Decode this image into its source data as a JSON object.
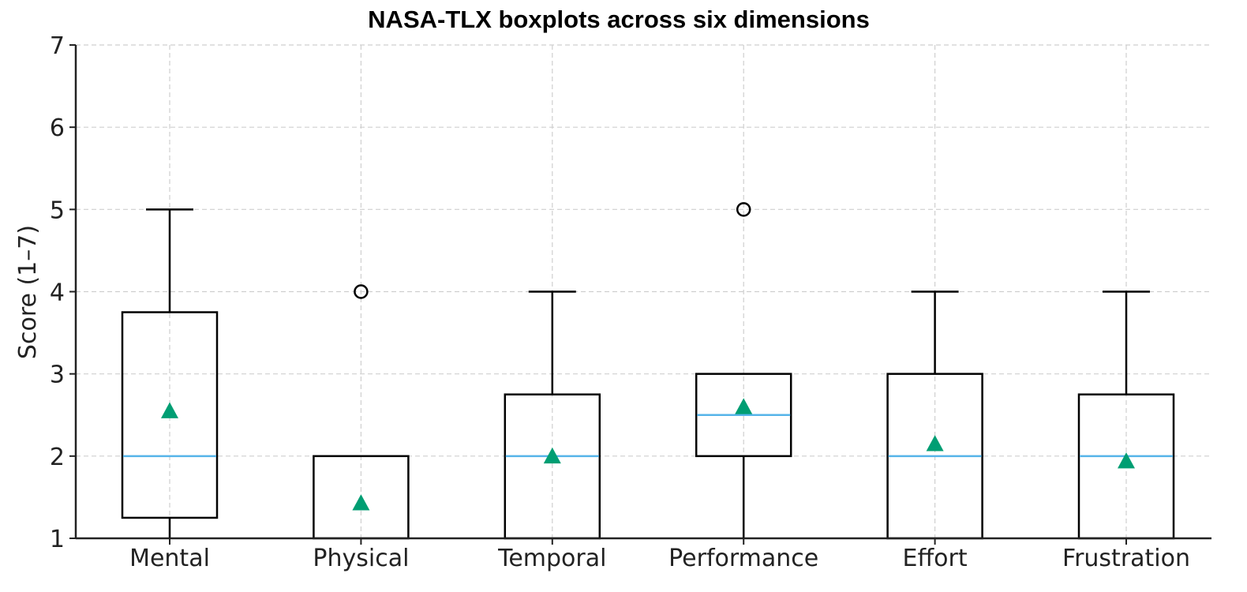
{
  "chart_data": {
    "type": "boxplot",
    "title": "NASA-TLX boxplots across six dimensions",
    "xlabel": "",
    "ylabel": "Score (1–7)",
    "ylim": [
      1,
      7
    ],
    "yticks": [
      1,
      2,
      3,
      4,
      5,
      6,
      7
    ],
    "grid": true,
    "categories": [
      "Mental",
      "Physical",
      "Temporal",
      "Performance",
      "Effort",
      "Frustration"
    ],
    "boxes": [
      {
        "name": "Mental",
        "whisker_low": 1,
        "q1": 1.25,
        "median": 2,
        "q3": 3.75,
        "whisker_high": 5,
        "mean": 2.55,
        "outliers": []
      },
      {
        "name": "Physical",
        "whisker_low": 1,
        "q1": 1,
        "median": 1,
        "q3": 2,
        "whisker_high": 2,
        "mean": 1.43,
        "outliers": [
          4
        ]
      },
      {
        "name": "Temporal",
        "whisker_low": 1,
        "q1": 1,
        "median": 2,
        "q3": 2.75,
        "whisker_high": 4,
        "mean": 2.0,
        "outliers": []
      },
      {
        "name": "Performance",
        "whisker_low": 1,
        "q1": 2,
        "median": 2.5,
        "q3": 3,
        "whisker_high": 3,
        "mean": 2.6,
        "outliers": [
          5
        ]
      },
      {
        "name": "Effort",
        "whisker_low": 1,
        "q1": 1,
        "median": 2,
        "q3": 3,
        "whisker_high": 4,
        "mean": 2.15,
        "outliers": []
      },
      {
        "name": "Frustration",
        "whisker_low": 1,
        "q1": 1,
        "median": 2,
        "q3": 2.75,
        "whisker_high": 4,
        "mean": 1.94,
        "outliers": []
      }
    ],
    "colors": {
      "box": "#000000",
      "median": "#56b4e9",
      "mean": "#009e73",
      "axis": "#222222",
      "grid": "#cfcfcf"
    }
  }
}
